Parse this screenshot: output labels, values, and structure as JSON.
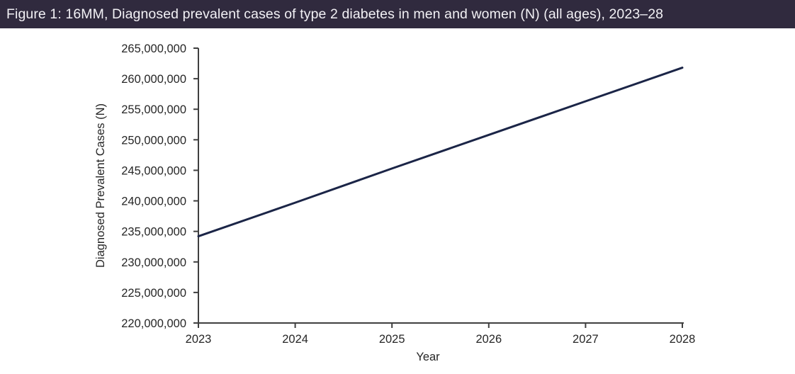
{
  "title_bar": {
    "text": "Figure 1: 16MM, Diagnosed prevalent cases of type 2 diabetes in men and women (N) (all ages), 2023–28"
  },
  "colors": {
    "title_bar_background": "#302A3E",
    "title_text": "#F2F1F5",
    "axis": "#3F3F3F",
    "tick_label_text": "#262626",
    "series_line": "#1B2547"
  },
  "chart_data": {
    "type": "line",
    "title": "Figure 1: 16MM, Diagnosed prevalent cases of type 2 diabetes in men and women (N) (all ages), 2023–28",
    "xlabel": "Year",
    "ylabel": "Diagnosed Prevalent Cases (N)",
    "x": [
      2023,
      2024,
      2025,
      2026,
      2027,
      2028
    ],
    "values": [
      234200000,
      239700000,
      245300000,
      250800000,
      256300000,
      261800000
    ],
    "ylim": [
      220000000,
      265000000
    ],
    "ytick_step": 5000000,
    "ytick_labels": [
      "220,000,000",
      "225,000,000",
      "230,000,000",
      "235,000,000",
      "240,000,000",
      "245,000,000",
      "250,000,000",
      "255,000,000",
      "260,000,000",
      "265,000,000"
    ],
    "xtick_labels": [
      "2023",
      "2024",
      "2025",
      "2026",
      "2027",
      "2028"
    ],
    "grid": false,
    "legend": "none",
    "line_color": "#1B2547",
    "line_width": 3
  }
}
